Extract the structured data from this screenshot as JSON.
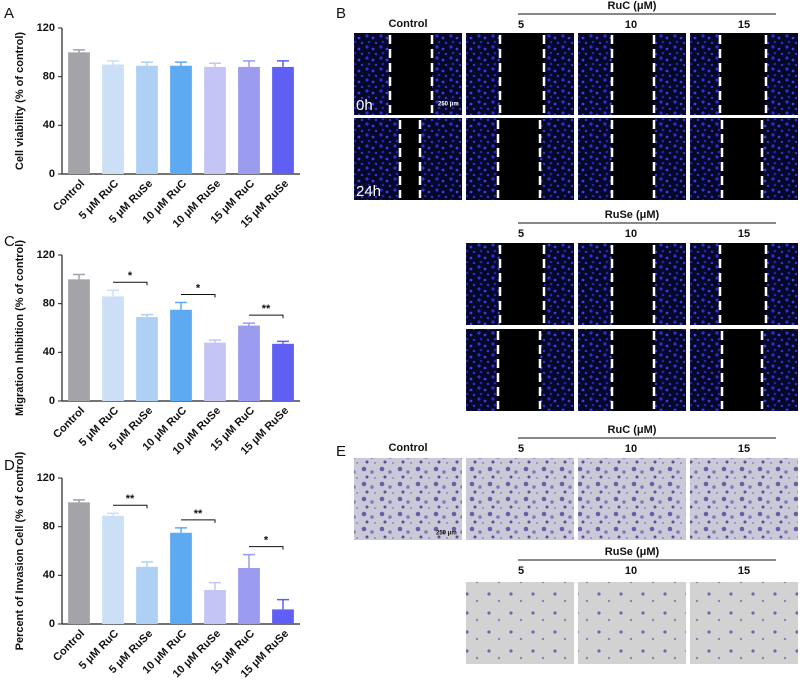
{
  "panel_labels": [
    "A",
    "B",
    "C",
    "D",
    "E"
  ],
  "chart_data": [
    {
      "type": "bar",
      "ylabel": "Cell viability (% of control)",
      "categories": [
        "Control",
        "5 μM RuC",
        "5 μM RuSe",
        "10 μM RuC",
        "10 μM RuSe",
        "15 μM RuC",
        "15 μM RuSe"
      ],
      "values": [
        100,
        90,
        89,
        89,
        88,
        88,
        88
      ],
      "errors": [
        2,
        3,
        3,
        3,
        3,
        5,
        5
      ],
      "colors": [
        "#a3a3a8",
        "#cbe0f7",
        "#aed0f5",
        "#5eaaf2",
        "#c5c5f5",
        "#9b9bef",
        "#5f5ff3"
      ],
      "ylim": [
        0,
        120
      ],
      "yticks": [
        0,
        40,
        80,
        120
      ],
      "annotations": []
    },
    {
      "type": "bar",
      "ylabel": "Migration Inhibition (% of control)",
      "categories": [
        "Control",
        "5 μM RuC",
        "5 μM RuSe",
        "10 μM RuC",
        "10 μM RuSe",
        "15 μM RuC",
        "15 μM RuSe"
      ],
      "values": [
        100,
        86,
        69,
        75,
        48,
        62,
        47
      ],
      "errors": [
        4,
        5,
        2,
        6,
        2,
        2,
        2
      ],
      "colors": [
        "#a3a3a8",
        "#cbe0f7",
        "#aed0f5",
        "#5eaaf2",
        "#c5c5f5",
        "#9b9bef",
        "#5f5ff3"
      ],
      "ylim": [
        0,
        120
      ],
      "yticks": [
        0,
        40,
        80,
        120
      ],
      "annotations": [
        "*",
        "*",
        "**"
      ]
    },
    {
      "type": "bar",
      "ylabel": "Percent of Invasion Cell (% of control)",
      "categories": [
        "Control",
        "5 μM RuC",
        "5 μM RuSe",
        "10 μM RuC",
        "10 μM RuSe",
        "15 μM RuC",
        "15 μM RuSe"
      ],
      "values": [
        100,
        89,
        47,
        75,
        28,
        46,
        12
      ],
      "errors": [
        2,
        2,
        4,
        4,
        6,
        11,
        8
      ],
      "colors": [
        "#a3a3a8",
        "#cbe0f7",
        "#aed0f5",
        "#5eaaf2",
        "#c5c5f5",
        "#9b9bef",
        "#5f5ff3"
      ],
      "ylim": [
        0,
        120
      ],
      "yticks": [
        0,
        40,
        80,
        120
      ],
      "annotations": [
        "**",
        "**",
        "*"
      ]
    }
  ],
  "scratch_panel": {
    "control": "Control",
    "group_ruc": "RuC (μM)",
    "group_ruse": "RuSe (μM)",
    "concentrations": [
      "5",
      "10",
      "15"
    ],
    "times": [
      "0h",
      "24h"
    ],
    "scale": "250 μm"
  },
  "transwell_panel": {
    "control": "Control",
    "group_ruc": "RuC (μM)",
    "group_ruse": "RuSe (μM)",
    "concentrations": [
      "5",
      "10",
      "15"
    ],
    "scale": "250 μm"
  }
}
